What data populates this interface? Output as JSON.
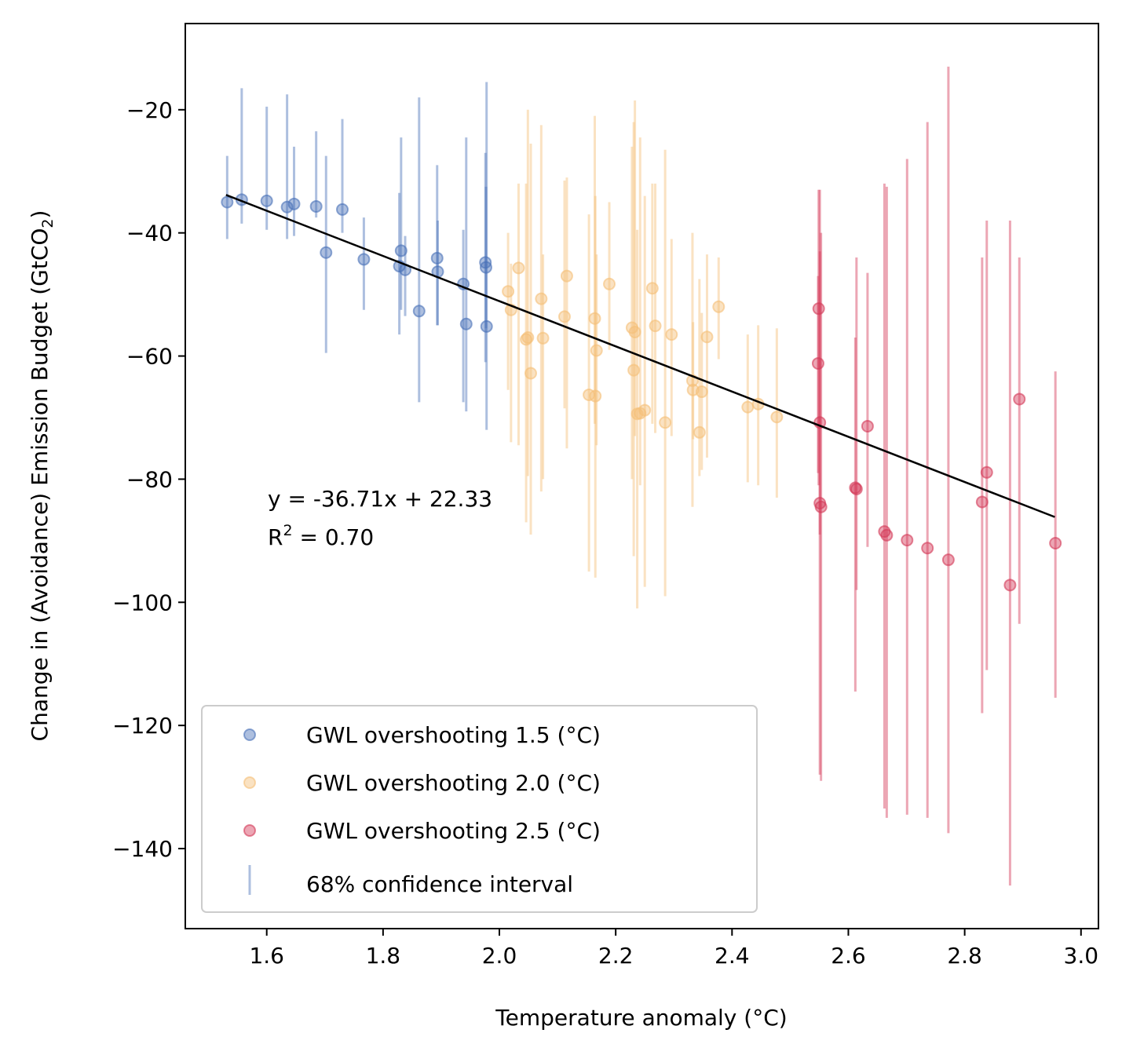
{
  "chart_data": {
    "type": "scatter",
    "xlabel": "Temperature anomaly (°C)",
    "ylabel": "Change in (Avoidance) Emission Budget (GtCO",
    "ylabel_sub": "2",
    "ylabel_end": ")",
    "xlim": [
      1.46,
      3.03
    ],
    "ylim": [
      -153,
      -6
    ],
    "xticks": [
      1.6,
      1.8,
      2.0,
      2.2,
      2.4,
      2.6,
      2.8,
      3.0
    ],
    "xtick_labels": [
      "1.6",
      "1.8",
      "2.0",
      "2.2",
      "2.4",
      "2.6",
      "2.8",
      "3.0"
    ],
    "yticks": [
      -20,
      -40,
      -60,
      -80,
      -100,
      -120,
      -140
    ],
    "ytick_labels": [
      "−20",
      "−40",
      "−60",
      "−80",
      "−100",
      "−120",
      "−140"
    ],
    "grid": false,
    "legend_position": "lower-left",
    "fit": {
      "slope": -36.71,
      "intercept": 22.33,
      "x_range": [
        1.53,
        2.955
      ],
      "color": "#000000",
      "equation_text": "y = -36.71x + 22.33",
      "r2_prefix": "R",
      "r2_sup": "2",
      "r2_suffix": " = 0.70"
    },
    "series": [
      {
        "name": "GWL overshooting 1.5 (°C)",
        "color": "#4a72b8",
        "points": [
          {
            "x": 1.532,
            "y": -35,
            "lo": -41,
            "hi": -27.5
          },
          {
            "x": 1.557,
            "y": -34.6,
            "lo": -38.5,
            "hi": -16.5
          },
          {
            "x": 1.6,
            "y": -34.8,
            "lo": -39.5,
            "hi": -19.5
          },
          {
            "x": 1.635,
            "y": -35.8,
            "lo": -41,
            "hi": -17.5
          },
          {
            "x": 1.647,
            "y": -35.3,
            "lo": -40.5,
            "hi": -26
          },
          {
            "x": 1.685,
            "y": -35.7,
            "lo": -37.5,
            "hi": -23.5
          },
          {
            "x": 1.702,
            "y": -43.2,
            "lo": -59.5,
            "hi": -27.5
          },
          {
            "x": 1.73,
            "y": -36.2,
            "lo": -40,
            "hi": -21.5
          },
          {
            "x": 1.767,
            "y": -44.3,
            "lo": -52.5,
            "hi": -37.5
          },
          {
            "x": 1.828,
            "y": -45.4,
            "lo": -56.5,
            "hi": -33.5
          },
          {
            "x": 1.831,
            "y": -42.9,
            "lo": -52.5,
            "hi": -24.5
          },
          {
            "x": 1.838,
            "y": -46.0,
            "lo": -53.5,
            "hi": -40.5
          },
          {
            "x": 1.862,
            "y": -52.7,
            "lo": -67.5,
            "hi": -18
          },
          {
            "x": 1.893,
            "y": -44.1,
            "lo": -55,
            "hi": -29
          },
          {
            "x": 1.894,
            "y": -46.3,
            "lo": -55,
            "hi": -38
          },
          {
            "x": 1.938,
            "y": -48.3,
            "lo": -67.5,
            "hi": -39.5
          },
          {
            "x": 1.943,
            "y": -54.8,
            "lo": -69,
            "hi": -24.5
          },
          {
            "x": 1.976,
            "y": -44.8,
            "lo": -61,
            "hi": -27
          },
          {
            "x": 1.977,
            "y": -45.6,
            "lo": -55.5,
            "hi": -32.5
          },
          {
            "x": 1.978,
            "y": -55.2,
            "lo": -72,
            "hi": -15.5
          }
        ]
      },
      {
        "name": "GWL overshooting 2.0 (°C)",
        "color": "#f5bf78",
        "points": [
          {
            "x": 2.015,
            "y": -49.5,
            "lo": -65.5,
            "hi": -40
          },
          {
            "x": 2.02,
            "y": -52.5,
            "lo": -74,
            "hi": -45
          },
          {
            "x": 2.033,
            "y": -45.7,
            "lo": -74.5,
            "hi": -32
          },
          {
            "x": 2.046,
            "y": -57.3,
            "lo": -87,
            "hi": -32
          },
          {
            "x": 2.049,
            "y": -57.0,
            "lo": -79.5,
            "hi": -20
          },
          {
            "x": 2.054,
            "y": -62.8,
            "lo": -89,
            "hi": -25.5
          },
          {
            "x": 2.072,
            "y": -50.7,
            "lo": -82,
            "hi": -22.5
          },
          {
            "x": 2.075,
            "y": -57.1,
            "lo": -80,
            "hi": -43.5
          },
          {
            "x": 2.112,
            "y": -53.6,
            "lo": -68.5,
            "hi": -31.5
          },
          {
            "x": 2.116,
            "y": -47.0,
            "lo": -75,
            "hi": -31
          },
          {
            "x": 2.154,
            "y": -66.3,
            "lo": -95,
            "hi": -37
          },
          {
            "x": 2.164,
            "y": -53.9,
            "lo": -71,
            "hi": -21
          },
          {
            "x": 2.165,
            "y": -66.5,
            "lo": -96,
            "hi": -34
          },
          {
            "x": 2.167,
            "y": -59.1,
            "lo": -74.5,
            "hi": -43.5
          },
          {
            "x": 2.189,
            "y": -48.3,
            "lo": -59,
            "hi": -35
          },
          {
            "x": 2.228,
            "y": -55.4,
            "lo": -80,
            "hi": -26
          },
          {
            "x": 2.231,
            "y": -62.3,
            "lo": -92.5,
            "hi": -22
          },
          {
            "x": 2.233,
            "y": -56.1,
            "lo": -73,
            "hi": -18.5
          },
          {
            "x": 2.237,
            "y": -69.4,
            "lo": -101,
            "hi": -39.5
          },
          {
            "x": 2.242,
            "y": -69.3,
            "lo": -81,
            "hi": -24.5
          },
          {
            "x": 2.25,
            "y": -68.8,
            "lo": -97.5,
            "hi": -34
          },
          {
            "x": 2.263,
            "y": -49.0,
            "lo": -71,
            "hi": -32
          },
          {
            "x": 2.268,
            "y": -55.1,
            "lo": -72.5,
            "hi": -32
          },
          {
            "x": 2.285,
            "y": -70.8,
            "lo": -99,
            "hi": -26.5
          },
          {
            "x": 2.296,
            "y": -56.5,
            "lo": -73,
            "hi": -41
          },
          {
            "x": 2.332,
            "y": -64.0,
            "lo": -84.5,
            "hi": -40
          },
          {
            "x": 2.333,
            "y": -65.5,
            "lo": -73.5,
            "hi": -54.5
          },
          {
            "x": 2.344,
            "y": -72.4,
            "lo": -79.5,
            "hi": -47.5
          },
          {
            "x": 2.348,
            "y": -65.8,
            "lo": -78.5,
            "hi": -53
          },
          {
            "x": 2.357,
            "y": -56.9,
            "lo": -76.5,
            "hi": -43.5
          },
          {
            "x": 2.377,
            "y": -52.0,
            "lo": -60.5,
            "hi": -44
          },
          {
            "x": 2.427,
            "y": -68.3,
            "lo": -80.5,
            "hi": -56.5
          },
          {
            "x": 2.445,
            "y": -67.8,
            "lo": -81,
            "hi": -55
          },
          {
            "x": 2.477,
            "y": -69.9,
            "lo": -83,
            "hi": -55.5
          }
        ]
      },
      {
        "name": "GWL overshooting 2.5 (°C)",
        "color": "#d43a58",
        "points": [
          {
            "x": 2.549,
            "y": -52.3,
            "lo": -81,
            "hi": -33
          },
          {
            "x": 2.548,
            "y": -61.2,
            "lo": -79,
            "hi": -47
          },
          {
            "x": 2.551,
            "y": -70.8,
            "lo": -89,
            "hi": -43
          },
          {
            "x": 2.551,
            "y": -83.9,
            "lo": -128,
            "hi": -33
          },
          {
            "x": 2.553,
            "y": -84.5,
            "lo": -129,
            "hi": -40
          },
          {
            "x": 2.612,
            "y": -81.4,
            "lo": -114.5,
            "hi": -57
          },
          {
            "x": 2.614,
            "y": -81.6,
            "lo": -98,
            "hi": -44
          },
          {
            "x": 2.633,
            "y": -71.4,
            "lo": -91,
            "hi": -46.5
          },
          {
            "x": 2.662,
            "y": -88.5,
            "lo": -133.5,
            "hi": -32
          },
          {
            "x": 2.666,
            "y": -89.1,
            "lo": -135,
            "hi": -32.5
          },
          {
            "x": 2.701,
            "y": -89.9,
            "lo": -134.5,
            "hi": -28
          },
          {
            "x": 2.736,
            "y": -91.2,
            "lo": -135,
            "hi": -22
          },
          {
            "x": 2.772,
            "y": -93.1,
            "lo": -137.5,
            "hi": -13
          },
          {
            "x": 2.83,
            "y": -83.7,
            "lo": -118,
            "hi": -44
          },
          {
            "x": 2.838,
            "y": -78.9,
            "lo": -111,
            "hi": -38
          },
          {
            "x": 2.878,
            "y": -97.2,
            "lo": -146,
            "hi": -38
          },
          {
            "x": 2.894,
            "y": -67.0,
            "lo": -103.5,
            "hi": -44
          },
          {
            "x": 2.956,
            "y": -90.4,
            "lo": -115.5,
            "hi": -62.5
          }
        ]
      }
    ],
    "legend": {
      "entries": [
        {
          "label": "GWL overshooting 1.5 (°C)",
          "kind": "marker",
          "color": "#4a72b8"
        },
        {
          "label": "GWL overshooting 2.0 (°C)",
          "kind": "marker",
          "color": "#f5bf78"
        },
        {
          "label": "GWL overshooting 2.5 (°C)",
          "kind": "marker",
          "color": "#d43a58"
        },
        {
          "label": "68% confidence interval",
          "kind": "errorbar",
          "color": "#4a72b8"
        }
      ]
    }
  }
}
